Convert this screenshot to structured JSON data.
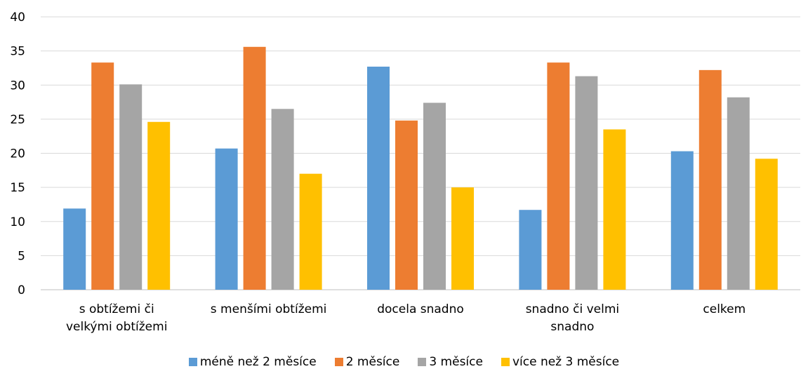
{
  "chart_data": {
    "type": "bar",
    "categories": [
      [
        "s obtížemi či",
        "velkými obtížemi"
      ],
      [
        "s menšími obtížemi"
      ],
      [
        "docela snadno"
      ],
      [
        "snadno či velmi",
        "snadno"
      ],
      [
        "celkem"
      ]
    ],
    "series": [
      {
        "name": "méně než 2 měsíce",
        "color": "#5b9bd5",
        "values": [
          11.9,
          20.7,
          32.7,
          11.7,
          20.3
        ]
      },
      {
        "name": "2 měsíce",
        "color": "#ed7d31",
        "values": [
          33.3,
          35.6,
          24.8,
          33.3,
          32.2
        ]
      },
      {
        "name": "3 měsíce",
        "color": "#a5a5a5",
        "values": [
          30.1,
          26.5,
          27.4,
          31.3,
          28.2
        ]
      },
      {
        "name": "více než 3 měsíce",
        "color": "#ffc000",
        "values": [
          24.6,
          17.0,
          15.0,
          23.5,
          19.2
        ]
      }
    ],
    "ylim": [
      0,
      40
    ],
    "yticks": [
      0,
      5,
      10,
      15,
      20,
      25,
      30,
      35,
      40
    ],
    "grid": true,
    "legend_position": "bottom",
    "title": "",
    "xlabel": "",
    "ylabel": ""
  }
}
